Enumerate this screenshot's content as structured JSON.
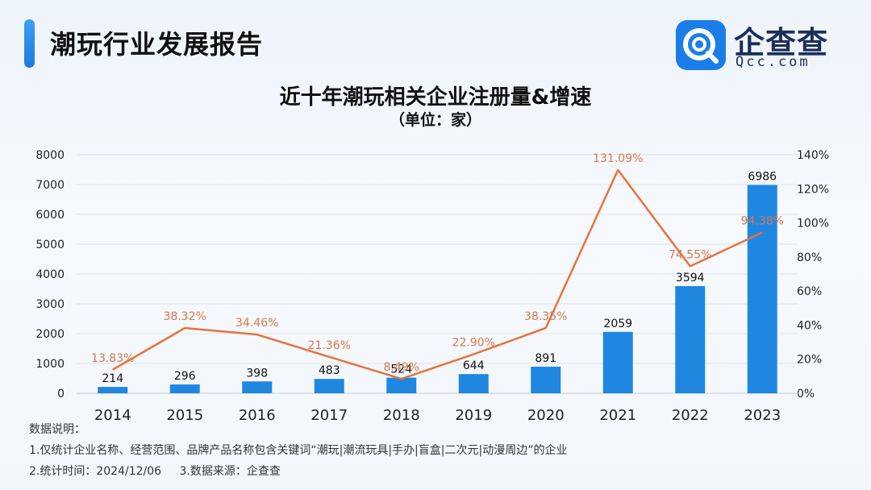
{
  "header": {
    "title": "潮玩行业发展报告",
    "logo_text": "企查查",
    "logo_sub": "Qcc.com"
  },
  "chart_title": "近十年潮玩相关企业注册量&增速",
  "chart_unit": "（单位：家）",
  "notes": {
    "heading": "数据说明：",
    "line1": "1.仅统计企业名称、经营范围、品牌产品名称包含关键词“潮玩|潮流玩具|手办|盲盒|二次元|动漫周边”的企业",
    "time": "2.统计时间：2024/12/06",
    "source": "3.数据来源：企查查"
  },
  "colors": {
    "bar": "#1f87e0",
    "line": "#e8733c",
    "accent": "#1b7ee8"
  },
  "chart_data": {
    "type": "bar+line",
    "categories": [
      "2014",
      "2015",
      "2016",
      "2017",
      "2018",
      "2019",
      "2020",
      "2021",
      "2022",
      "2023"
    ],
    "series": [
      {
        "type": "bar",
        "axis": "left",
        "values": [
          214,
          296,
          398,
          483,
          524,
          644,
          891,
          2059,
          3594,
          6986
        ],
        "labels": [
          "214",
          "296",
          "398",
          "483",
          "524",
          "644",
          "891",
          "2059",
          "3594",
          "6986"
        ]
      },
      {
        "type": "line",
        "axis": "right",
        "values": [
          13.83,
          38.32,
          34.46,
          21.36,
          8.49,
          22.9,
          38.35,
          131.09,
          74.55,
          94.38
        ],
        "labels": [
          "13.83%",
          "38.32%",
          "34.46%",
          "21.36%",
          "8.49%",
          "22.90%",
          "38.35%",
          "131.09%",
          "74.55%",
          "94.38%"
        ]
      }
    ],
    "y_left": {
      "min": 0,
      "max": 8000,
      "ticks": [
        "0",
        "1000",
        "2000",
        "3000",
        "4000",
        "5000",
        "6000",
        "7000",
        "8000"
      ]
    },
    "y_right": {
      "min": 0,
      "max": 140,
      "ticks": [
        "0%",
        "20%",
        "40%",
        "60%",
        "80%",
        "100%",
        "120%",
        "140%"
      ]
    },
    "grid": true,
    "legend": "none"
  }
}
